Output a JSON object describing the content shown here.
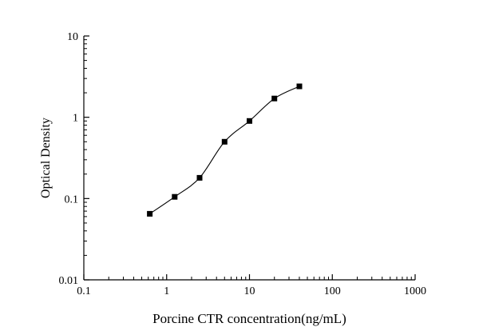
{
  "chart_data": {
    "type": "line",
    "title": "",
    "xlabel": "Porcine CTR concentration(ng/mL)",
    "ylabel": "Optical Density",
    "x": [
      0.625,
      1.25,
      2.5,
      5,
      10,
      20,
      40
    ],
    "y": [
      0.065,
      0.105,
      0.18,
      0.5,
      0.9,
      1.7,
      2.4
    ],
    "xlim": [
      0.1,
      1000
    ],
    "ylim": [
      0.01,
      10
    ],
    "x_scale": "log",
    "y_scale": "log",
    "x_ticks": {
      "values": [
        0.1,
        1,
        10,
        100,
        1000
      ],
      "labels": [
        "0.1",
        "1",
        "10",
        "100",
        "1000"
      ]
    },
    "y_ticks": {
      "values": [
        0.01,
        0.1,
        1,
        10
      ],
      "labels": [
        "0.01",
        "0.1",
        "1",
        "10"
      ]
    },
    "grid": false,
    "legend": null,
    "marker": "square",
    "marker_color": "#000000",
    "line_color": "#000000",
    "background": "#ffffff"
  }
}
